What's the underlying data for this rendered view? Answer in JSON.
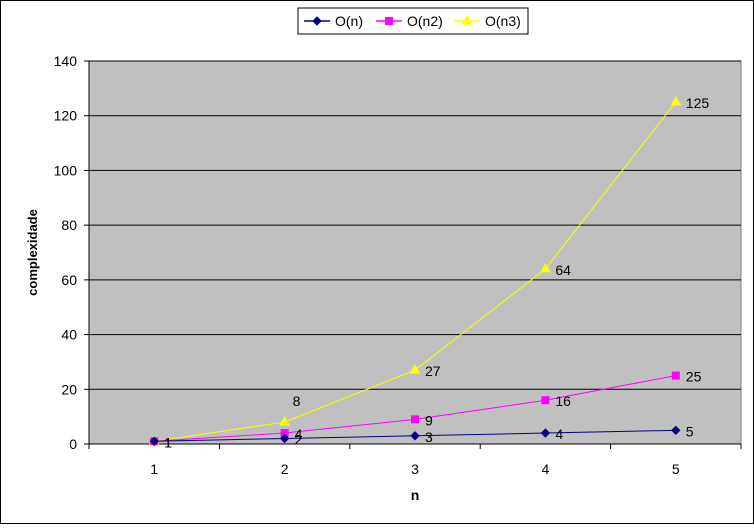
{
  "chart_data": {
    "type": "line",
    "title": "",
    "xlabel": "n",
    "ylabel": "complexidade",
    "categories": [
      "1",
      "2",
      "3",
      "4",
      "5"
    ],
    "ylim": [
      0,
      140
    ],
    "yticks": [
      "0",
      "20",
      "40",
      "60",
      "80",
      "100",
      "120",
      "140"
    ],
    "grid": true,
    "legend_position": "top",
    "series": [
      {
        "name": "O(n)",
        "values": [
          1,
          2,
          3,
          4,
          5
        ],
        "labels": [
          "1",
          "2",
          "3",
          "4",
          "5"
        ],
        "color": "#000080",
        "marker": "diamond"
      },
      {
        "name": "O(n2)",
        "values": [
          1,
          4,
          9,
          16,
          25
        ],
        "labels": [
          "1",
          "4",
          "9",
          "16",
          "25"
        ],
        "color": "#FF00FF",
        "marker": "square"
      },
      {
        "name": "O(n3)",
        "values": [
          1,
          8,
          27,
          64,
          125
        ],
        "labels": [
          "1",
          "8",
          "27",
          "64",
          "125"
        ],
        "color": "#FFFF00",
        "marker": "triangle"
      }
    ],
    "plot_background": "#C0C0C0"
  }
}
